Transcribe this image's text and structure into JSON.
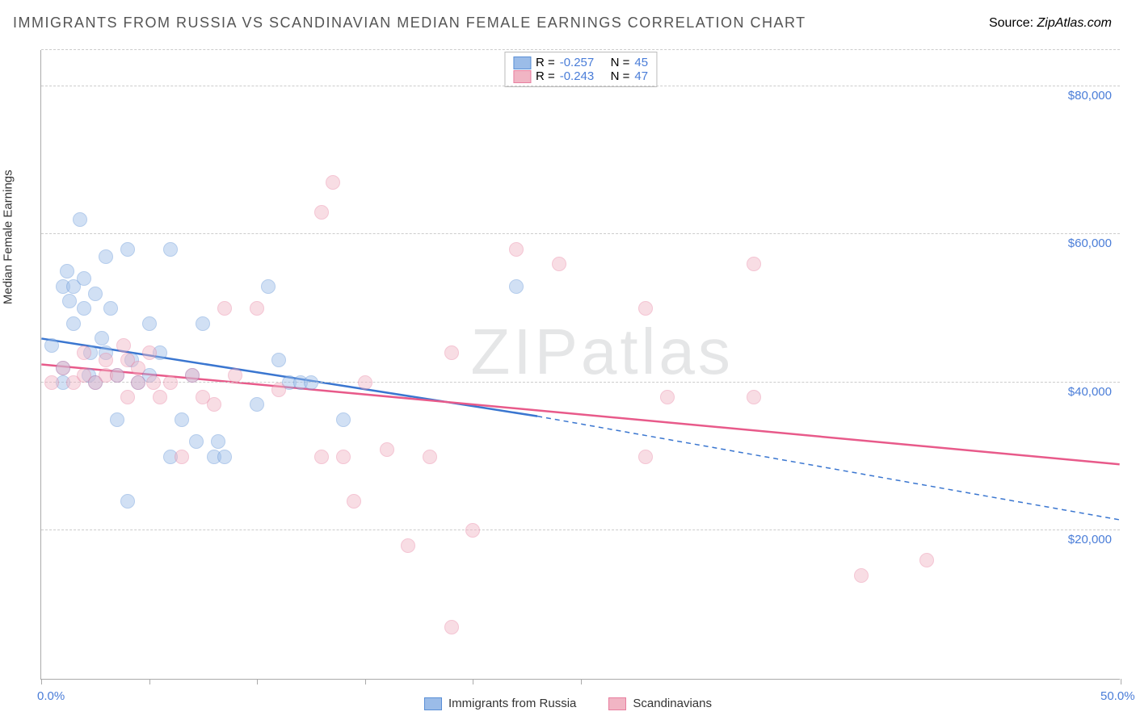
{
  "header": {
    "title": "IMMIGRANTS FROM RUSSIA VS SCANDINAVIAN MEDIAN FEMALE EARNINGS CORRELATION CHART",
    "source_label": "Source: ",
    "source_value": "ZipAtlas.com"
  },
  "watermark": "ZIPatlas",
  "chart": {
    "type": "scatter",
    "y_axis_title": "Median Female Earnings",
    "xlim": [
      0,
      50
    ],
    "ylim": [
      0,
      85000
    ],
    "x_ticks": [
      0,
      5,
      10,
      15,
      20,
      25,
      50
    ],
    "x_tick_labels": {
      "0": "0.0%",
      "50": "50.0%"
    },
    "y_gridlines": [
      20000,
      40000,
      60000,
      80000
    ],
    "y_labels": [
      "$20,000",
      "$40,000",
      "$60,000",
      "$80,000"
    ],
    "grid_color": "#cccccc",
    "background_color": "#ffffff",
    "label_color": "#4a7dd8",
    "axis_color": "#aaaaaa",
    "point_radius": 9,
    "point_opacity": 0.45,
    "series": [
      {
        "name": "Immigrants from Russia",
        "fill_color": "#9bbce8",
        "stroke_color": "#5a8fd6",
        "line_color": "#3a76d0",
        "R": "-0.257",
        "N": "45",
        "trend": {
          "x1": 0,
          "y1": 46000,
          "x2": 23,
          "y2": 35500,
          "ext_x2": 50,
          "ext_y2": 21500
        },
        "points": [
          [
            0.5,
            45000
          ],
          [
            1,
            42000
          ],
          [
            1,
            53000
          ],
          [
            1.2,
            55000
          ],
          [
            1.3,
            51000
          ],
          [
            1.5,
            48000
          ],
          [
            1.5,
            53000
          ],
          [
            1.8,
            62000
          ],
          [
            2,
            50000
          ],
          [
            2,
            54000
          ],
          [
            2.2,
            41000
          ],
          [
            2.3,
            44000
          ],
          [
            2.5,
            52000
          ],
          [
            2.5,
            40000
          ],
          [
            3,
            57000
          ],
          [
            3,
            44000
          ],
          [
            3.2,
            50000
          ],
          [
            3.5,
            41000
          ],
          [
            3.5,
            35000
          ],
          [
            4,
            58000
          ],
          [
            4,
            24000
          ],
          [
            4.2,
            43000
          ],
          [
            4.5,
            40000
          ],
          [
            5,
            48000
          ],
          [
            5,
            41000
          ],
          [
            5.5,
            44000
          ],
          [
            6,
            58000
          ],
          [
            6,
            30000
          ],
          [
            6.5,
            35000
          ],
          [
            7,
            41000
          ],
          [
            7.2,
            32000
          ],
          [
            7.5,
            48000
          ],
          [
            8,
            30000
          ],
          [
            8.2,
            32000
          ],
          [
            8.5,
            30000
          ],
          [
            10,
            37000
          ],
          [
            10.5,
            53000
          ],
          [
            11,
            43000
          ],
          [
            11.5,
            40000
          ],
          [
            12,
            40000
          ],
          [
            12.5,
            40000
          ],
          [
            14,
            35000
          ],
          [
            22,
            53000
          ],
          [
            1,
            40000
          ],
          [
            2.8,
            46000
          ]
        ]
      },
      {
        "name": "Scandinavians",
        "fill_color": "#f1b5c4",
        "stroke_color": "#e87fa0",
        "line_color": "#e85a8a",
        "R": "-0.243",
        "N": "47",
        "trend": {
          "x1": 0,
          "y1": 42500,
          "x2": 50,
          "y2": 29000
        },
        "points": [
          [
            0.5,
            40000
          ],
          [
            1,
            42000
          ],
          [
            1.5,
            40000
          ],
          [
            2,
            41000
          ],
          [
            2,
            44000
          ],
          [
            2.5,
            40000
          ],
          [
            3,
            43000
          ],
          [
            3,
            41000
          ],
          [
            3.5,
            41000
          ],
          [
            4,
            43000
          ],
          [
            4,
            38000
          ],
          [
            4.5,
            40000
          ],
          [
            4.5,
            42000
          ],
          [
            5,
            44000
          ],
          [
            5.2,
            40000
          ],
          [
            5.5,
            38000
          ],
          [
            6,
            40000
          ],
          [
            6.5,
            30000
          ],
          [
            7,
            41000
          ],
          [
            7.5,
            38000
          ],
          [
            8,
            37000
          ],
          [
            8.5,
            50000
          ],
          [
            9,
            41000
          ],
          [
            10,
            50000
          ],
          [
            11,
            39000
          ],
          [
            13,
            63000
          ],
          [
            13,
            30000
          ],
          [
            13.5,
            67000
          ],
          [
            14,
            30000
          ],
          [
            14.5,
            24000
          ],
          [
            15,
            40000
          ],
          [
            16,
            31000
          ],
          [
            17,
            18000
          ],
          [
            18,
            30000
          ],
          [
            19,
            44000
          ],
          [
            19,
            7000
          ],
          [
            20,
            20000
          ],
          [
            22,
            58000
          ],
          [
            24,
            56000
          ],
          [
            28,
            50000
          ],
          [
            28,
            30000
          ],
          [
            29,
            38000
          ],
          [
            33,
            56000
          ],
          [
            33,
            38000
          ],
          [
            38,
            14000
          ],
          [
            41,
            16000
          ],
          [
            3.8,
            45000
          ]
        ]
      }
    ],
    "legend_labels": {
      "R": "R =",
      "N": "N ="
    }
  }
}
